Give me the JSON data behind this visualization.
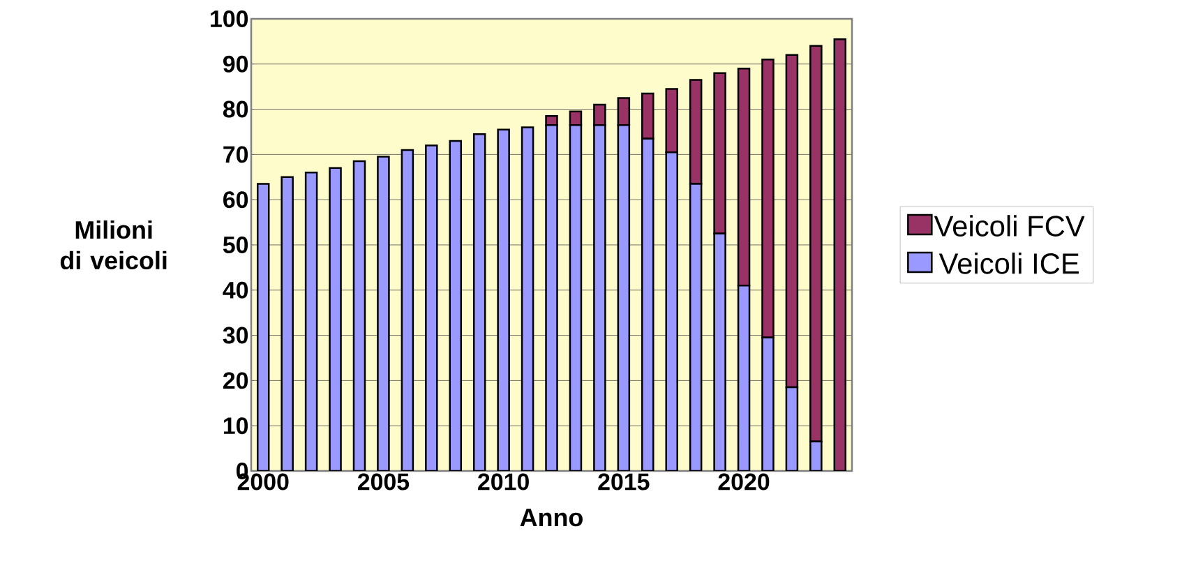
{
  "chart_data": {
    "type": "bar",
    "stacked": true,
    "xlabel": "Anno",
    "ylabel": "Milioni di veicoli",
    "categories": [
      "2000",
      null,
      null,
      null,
      null,
      "2005",
      null,
      null,
      null,
      null,
      "2010",
      null,
      null,
      null,
      null,
      "2015",
      null,
      null,
      null,
      null,
      "2020",
      null,
      null,
      null,
      null
    ],
    "series": [
      {
        "name": "Veicoli ICE",
        "color": "#9999ff",
        "values": [
          63.5,
          65,
          66,
          67,
          68.5,
          69.5,
          71,
          72,
          73,
          74.5,
          75.5,
          76,
          76.5,
          76.5,
          76.5,
          76.5,
          73.5,
          70.5,
          63.5,
          52.5,
          41,
          29.5,
          18.5,
          6.5,
          0
        ]
      },
      {
        "name": "Veicoli FCV",
        "color": "#993366",
        "values": [
          0,
          0,
          0,
          0,
          0,
          0,
          0,
          0,
          0,
          0,
          0,
          0,
          2,
          3,
          4.5,
          6,
          10,
          14,
          23,
          35.5,
          48,
          61.5,
          73.5,
          87.5,
          95.5
        ]
      }
    ],
    "ylim": [
      0,
      100
    ],
    "yticks": [
      0,
      10,
      20,
      30,
      40,
      50,
      60,
      70,
      80,
      90,
      100
    ],
    "grid": "y",
    "legend": "right"
  }
}
